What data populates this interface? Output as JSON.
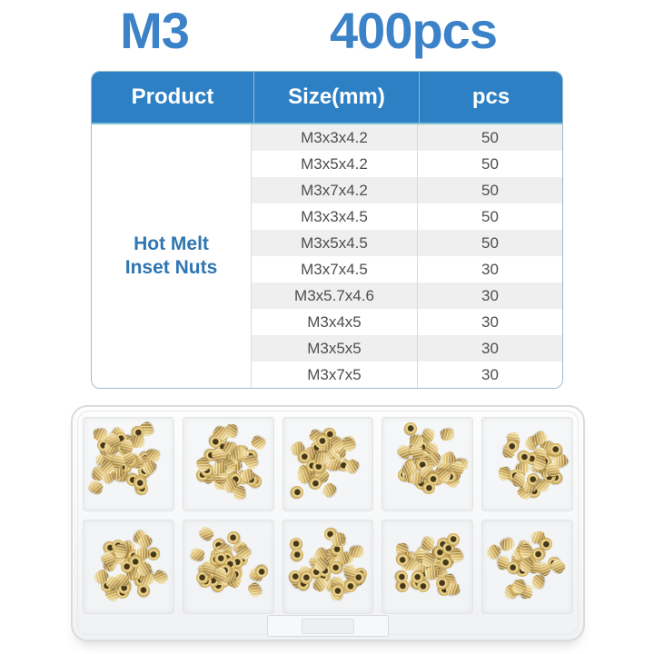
{
  "title": {
    "size": "M3",
    "count": "400pcs"
  },
  "colors": {
    "title_blue": "#3b82c8",
    "header_blue": "#2e80c5",
    "header_text": "#ffffff",
    "product_blue": "#2e76b2",
    "row_stripe": "#efefef",
    "row_text": "#4e4e4e",
    "table_border": "#9dbfc8",
    "header_underline": "#7fc4d6"
  },
  "table": {
    "columns": [
      "Product",
      "Size(mm)",
      "pcs"
    ],
    "product_lines": [
      "Hot Melt",
      "Inset Nuts"
    ],
    "rows": [
      {
        "size": "M3x3x4.2",
        "pcs": "50"
      },
      {
        "size": "M3x5x4.2",
        "pcs": "50"
      },
      {
        "size": "M3x7x4.2",
        "pcs": "50"
      },
      {
        "size": "M3x3x4.5",
        "pcs": "50"
      },
      {
        "size": "M3x5x4.5",
        "pcs": "50"
      },
      {
        "size": "M3x7x4.5",
        "pcs": "30"
      },
      {
        "size": "M3x5.7x4.6",
        "pcs": "30"
      },
      {
        "size": "M3x4x5",
        "pcs": "30"
      },
      {
        "size": "M3x5x5",
        "pcs": "30"
      },
      {
        "size": "M3x7x5",
        "pcs": "30"
      }
    ]
  },
  "photo": {
    "subject": "clear plastic organizer box with 10 compartments of brass knurled heat-set insert nuts",
    "grid": {
      "rows": 2,
      "cols": 5
    },
    "compartment_counts": [
      [
        44,
        42,
        40,
        40,
        34
      ],
      [
        42,
        40,
        36,
        40,
        30
      ]
    ],
    "colors": {
      "brass_hi": "#f3e3ac",
      "brass_mid": "#d8b766",
      "brass_dark": "#a8853c",
      "hole_dark": "#45371a",
      "box_edge": "#d9dbdd"
    }
  }
}
